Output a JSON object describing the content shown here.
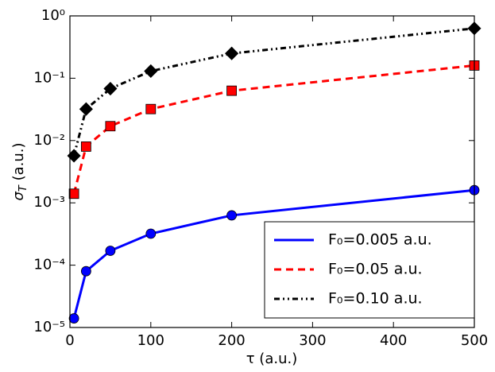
{
  "chart_data": {
    "type": "line",
    "xlabel": "τ (a.u.)",
    "ylabel": "σT (a.u.)",
    "x": [
      5,
      20,
      50,
      100,
      200,
      500
    ],
    "series": [
      {
        "name": "F₀=0.005 a.u.",
        "color": "#0000ff",
        "linestyle": "solid",
        "marker": "circle",
        "values": [
          1.4e-05,
          8e-05,
          0.00017,
          0.00032,
          0.00063,
          0.0016
        ]
      },
      {
        "name": "F₀=0.05 a.u.",
        "color": "#ff0000",
        "linestyle": "dashed",
        "marker": "square",
        "values": [
          0.0014,
          0.008,
          0.017,
          0.032,
          0.063,
          0.16
        ]
      },
      {
        "name": "F₀=0.10 a.u.",
        "color": "#000000",
        "linestyle": "dashdotdot",
        "marker": "diamond",
        "values": [
          0.0057,
          0.032,
          0.068,
          0.13,
          0.25,
          0.63
        ]
      }
    ],
    "xlim": [
      0,
      500
    ],
    "xticks": [
      0,
      100,
      200,
      300,
      400,
      500
    ],
    "ylim": [
      1e-05,
      1
    ],
    "yscale": "log",
    "yticks": [
      {
        "value": 1e-05,
        "label": "10⁻⁵"
      },
      {
        "value": 0.0001,
        "label": "10⁻⁴"
      },
      {
        "value": 0.001,
        "label": "10⁻³"
      },
      {
        "value": 0.01,
        "label": "10⁻²"
      },
      {
        "value": 0.1,
        "label": "10⁻¹"
      },
      {
        "value": 1,
        "label": "10⁰"
      }
    ],
    "legend": "lower right"
  }
}
